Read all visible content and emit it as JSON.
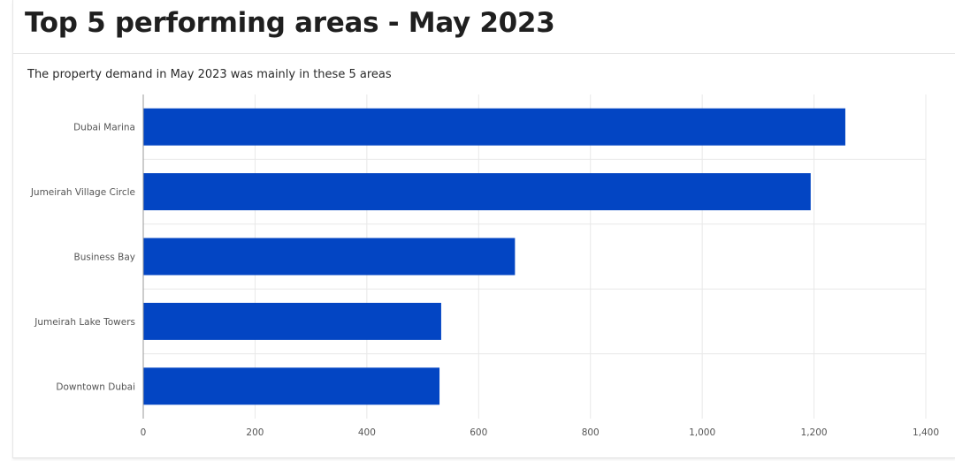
{
  "header": {
    "title": "Top 5 performing areas - May 2023",
    "subtitle": "The property demand in May 2023 was mainly in these 5 areas"
  },
  "colors": {
    "bar": "#0345c3",
    "grid": "#e8e8e8",
    "axis": "#999999",
    "tick_text": "#555555"
  },
  "chart_data": {
    "type": "bar",
    "orientation": "horizontal",
    "title": "",
    "xlabel": "",
    "ylabel": "",
    "categories": [
      "Dubai Marina",
      "Jumeirah Village Circle",
      "Business Bay",
      "Jumeirah Lake Towers",
      "Downtown Dubai"
    ],
    "values": [
      1256,
      1194,
      665,
      533,
      530
    ],
    "xlim": [
      0,
      1400
    ],
    "xticks": [
      0,
      200,
      400,
      600,
      800,
      1000,
      1200,
      1400
    ],
    "xtick_labels": [
      "0",
      "200",
      "400",
      "600",
      "800",
      "1,000",
      "1,200",
      "1,400"
    ],
    "grid": true,
    "legend": "none"
  }
}
